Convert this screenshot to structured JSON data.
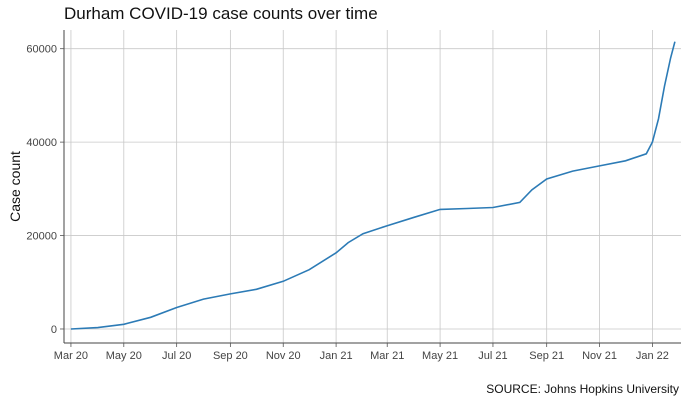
{
  "chart_data": {
    "type": "line",
    "title": "Durham COVID-19 case counts over time",
    "caption": "SOURCE: Johns Hopkins University",
    "xlabel": "",
    "ylabel": "Case count",
    "x_ticks": [
      "Mar 20",
      "May 20",
      "Jul 20",
      "Sep 20",
      "Nov 20",
      "Jan 21",
      "Mar 21",
      "May 21",
      "Jul 21",
      "Sep 21",
      "Nov 21",
      "Jan 22"
    ],
    "y_ticks": [
      0,
      20000,
      40000,
      60000
    ],
    "xlim": [
      "2020-02-22",
      "2022-02-03"
    ],
    "ylim": [
      -3000,
      64000
    ],
    "grid": true,
    "line_color": "#2c7bb6",
    "series": [
      {
        "x": [
          "2020-03-01",
          "2020-04-01",
          "2020-05-01",
          "2020-06-01",
          "2020-07-01",
          "2020-08-01",
          "2020-09-01",
          "2020-10-01",
          "2020-11-01",
          "2020-12-01",
          "2021-01-01",
          "2021-01-15",
          "2021-02-01",
          "2021-03-01",
          "2021-04-01",
          "2021-05-01",
          "2021-06-01",
          "2021-07-01",
          "2021-08-01",
          "2021-08-15",
          "2021-09-01",
          "2021-10-01",
          "2021-11-01",
          "2021-12-01",
          "2021-12-25",
          "2022-01-01",
          "2022-01-08",
          "2022-01-15",
          "2022-01-22",
          "2022-01-27"
        ],
        "y": [
          0,
          300,
          1000,
          2500,
          4600,
          6400,
          7500,
          8500,
          10200,
          12700,
          16300,
          18500,
          20400,
          22100,
          23900,
          25600,
          25800,
          26000,
          27100,
          29800,
          32100,
          33800,
          34900,
          36000,
          37500,
          40000,
          45000,
          52000,
          58000,
          61500
        ]
      }
    ]
  }
}
